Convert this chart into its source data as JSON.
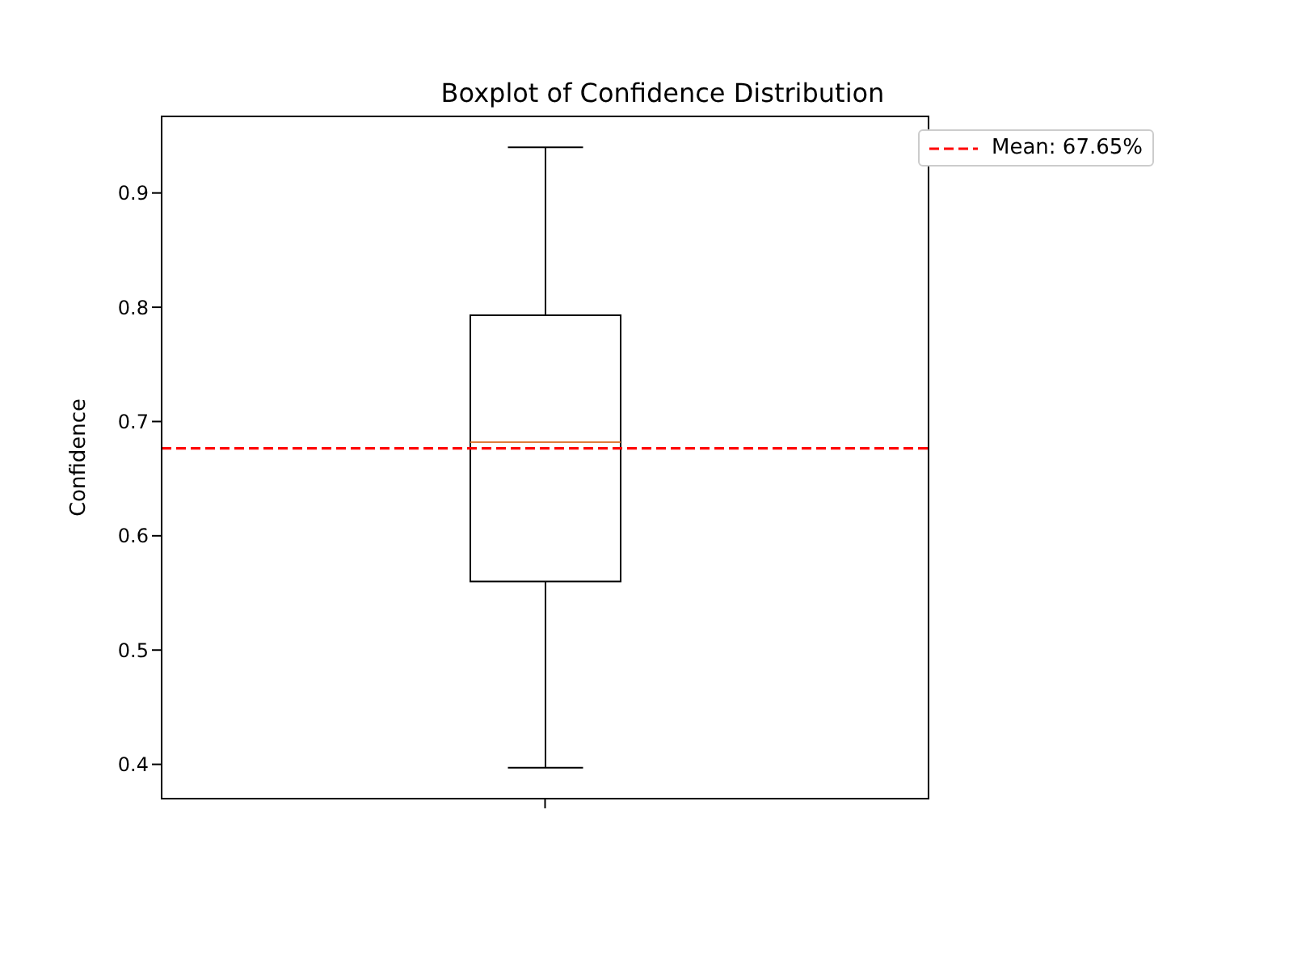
{
  "chart_data": {
    "type": "box",
    "title": "Boxplot of Confidence Distribution",
    "ylabel": "Confidence",
    "categories": [
      null
    ],
    "boxes": [
      {
        "low": 0.397,
        "q1": 0.56,
        "median": 0.682,
        "q3": 0.793,
        "high": 0.94
      }
    ],
    "ylim": [
      0.37,
      0.967
    ],
    "yticks": [
      0.4,
      0.5,
      0.6,
      0.7,
      0.8,
      0.9
    ],
    "grid": false,
    "legend": "top right",
    "ref_lines": [
      {
        "axis": "y",
        "value": 0.6765,
        "label": "Mean: 67.65%",
        "color": "#ff0000",
        "line_style": "dashed"
      }
    ]
  }
}
